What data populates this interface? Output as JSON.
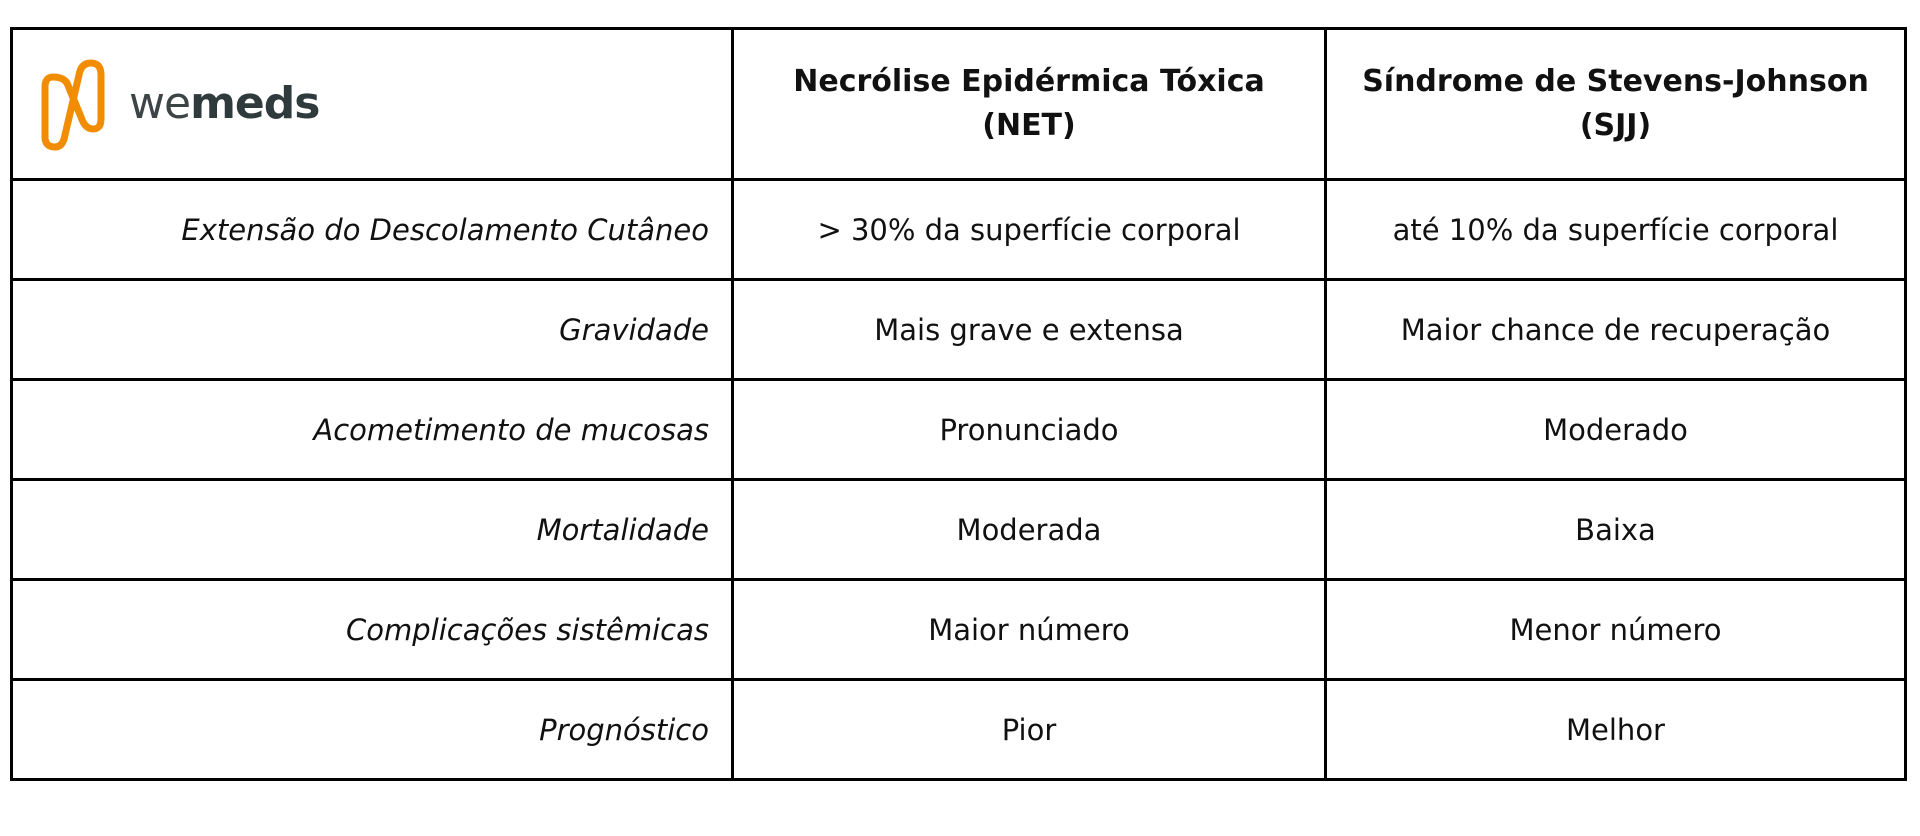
{
  "logo": {
    "text_light": "we",
    "text_bold": "meds",
    "brand_color": "#F28C00"
  },
  "header": {
    "col2": "Necrólise Epidérmica Tóxica (NET)",
    "col3": "Síndrome de Stevens-Johnson (SJJ)"
  },
  "rows": [
    {
      "label": "Extensão do Descolamento Cutâneo",
      "net": "> 30% da superfície corporal",
      "sjj": "até 10% da superfície corporal"
    },
    {
      "label": "Gravidade",
      "net": "Mais grave e extensa",
      "sjj": "Maior chance de recuperação"
    },
    {
      "label": "Acometimento de mucosas",
      "net": "Pronunciado",
      "sjj": "Moderado"
    },
    {
      "label": "Mortalidade",
      "net": "Moderada",
      "sjj": "Baixa"
    },
    {
      "label": "Complicações sistêmicas",
      "net": "Maior número",
      "sjj": "Menor número"
    },
    {
      "label": "Prognóstico",
      "net": "Pior",
      "sjj": "Melhor"
    }
  ]
}
